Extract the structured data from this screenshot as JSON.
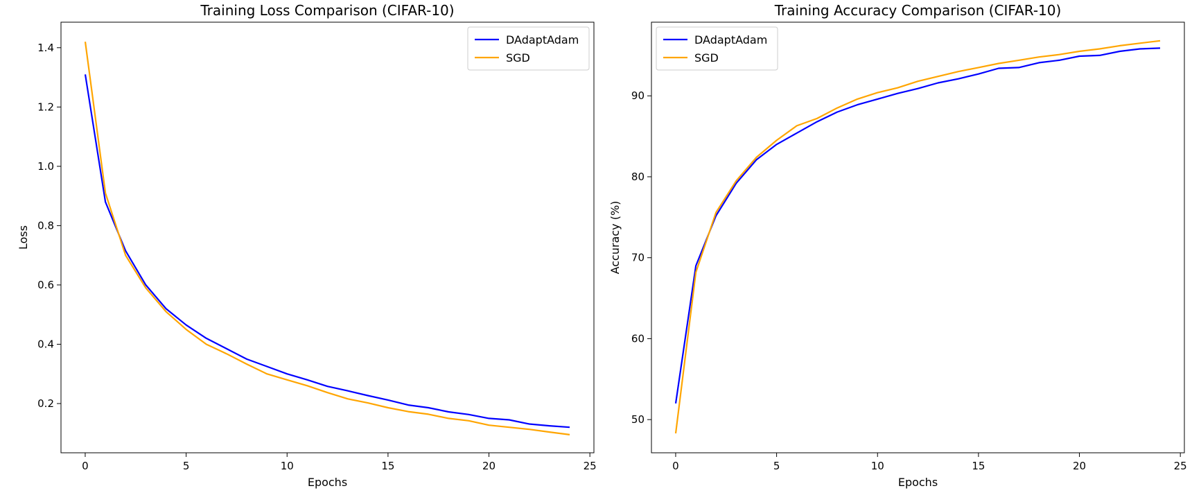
{
  "chart_data": [
    {
      "type": "line",
      "title": "Training Loss Comparison (CIFAR-10)",
      "xlabel": "Epochs",
      "ylabel": "Loss",
      "xlim": [
        -1.2,
        25.2
      ],
      "ylim": [
        0.034,
        1.486
      ],
      "xticks": [
        0,
        5,
        10,
        15,
        20,
        25
      ],
      "yticks": [
        0.2,
        0.4,
        0.6,
        0.8,
        1.0,
        1.2,
        1.4
      ],
      "ytick_decimals": 1,
      "grid": false,
      "legend": "top-right",
      "x": [
        0,
        1,
        2,
        3,
        4,
        5,
        6,
        7,
        8,
        9,
        10,
        11,
        12,
        13,
        14,
        15,
        16,
        17,
        18,
        19,
        20,
        21,
        22,
        23,
        24
      ],
      "series": [
        {
          "name": "DAdaptAdam",
          "color": "#0000ff",
          "values": [
            1.31,
            0.88,
            0.715,
            0.6,
            0.52,
            0.465,
            0.42,
            0.385,
            0.35,
            0.325,
            0.3,
            0.28,
            0.258,
            0.243,
            0.227,
            0.212,
            0.195,
            0.186,
            0.172,
            0.163,
            0.15,
            0.145,
            0.131,
            0.125,
            0.12
          ]
        },
        {
          "name": "SGD",
          "color": "#ffa500",
          "values": [
            1.42,
            0.91,
            0.7,
            0.59,
            0.51,
            0.45,
            0.4,
            0.368,
            0.333,
            0.3,
            0.28,
            0.26,
            0.237,
            0.216,
            0.202,
            0.186,
            0.173,
            0.164,
            0.15,
            0.142,
            0.127,
            0.12,
            0.113,
            0.104,
            0.095
          ]
        }
      ]
    },
    {
      "type": "line",
      "title": "Training Accuracy Comparison (CIFAR-10)",
      "xlabel": "Epochs",
      "ylabel": "Accuracy (%)",
      "xlim": [
        -1.2,
        25.2
      ],
      "ylim": [
        45.9,
        99.1
      ],
      "xticks": [
        0,
        5,
        10,
        15,
        20,
        25
      ],
      "yticks": [
        50,
        60,
        70,
        80,
        90
      ],
      "ytick_decimals": 0,
      "grid": false,
      "legend": "top-left",
      "x": [
        0,
        1,
        2,
        3,
        4,
        5,
        6,
        7,
        8,
        9,
        10,
        11,
        12,
        13,
        14,
        15,
        16,
        17,
        18,
        19,
        20,
        21,
        22,
        23,
        24
      ],
      "series": [
        {
          "name": "DAdaptAdam",
          "color": "#0000ff",
          "values": [
            52,
            69,
            75.2,
            79.2,
            82.1,
            84,
            85.4,
            86.8,
            88,
            88.9,
            89.6,
            90.3,
            90.9,
            91.6,
            92.1,
            92.7,
            93.4,
            93.5,
            94.1,
            94.4,
            94.9,
            95,
            95.5,
            95.8,
            95.9
          ]
        },
        {
          "name": "SGD",
          "color": "#ffa500",
          "values": [
            48.3,
            68.2,
            75.6,
            79.5,
            82.4,
            84.5,
            86.3,
            87.2,
            88.5,
            89.6,
            90.4,
            91,
            91.8,
            92.4,
            93,
            93.5,
            94,
            94.4,
            94.8,
            95.1,
            95.5,
            95.8,
            96.2,
            96.5,
            96.8
          ]
        }
      ]
    }
  ]
}
